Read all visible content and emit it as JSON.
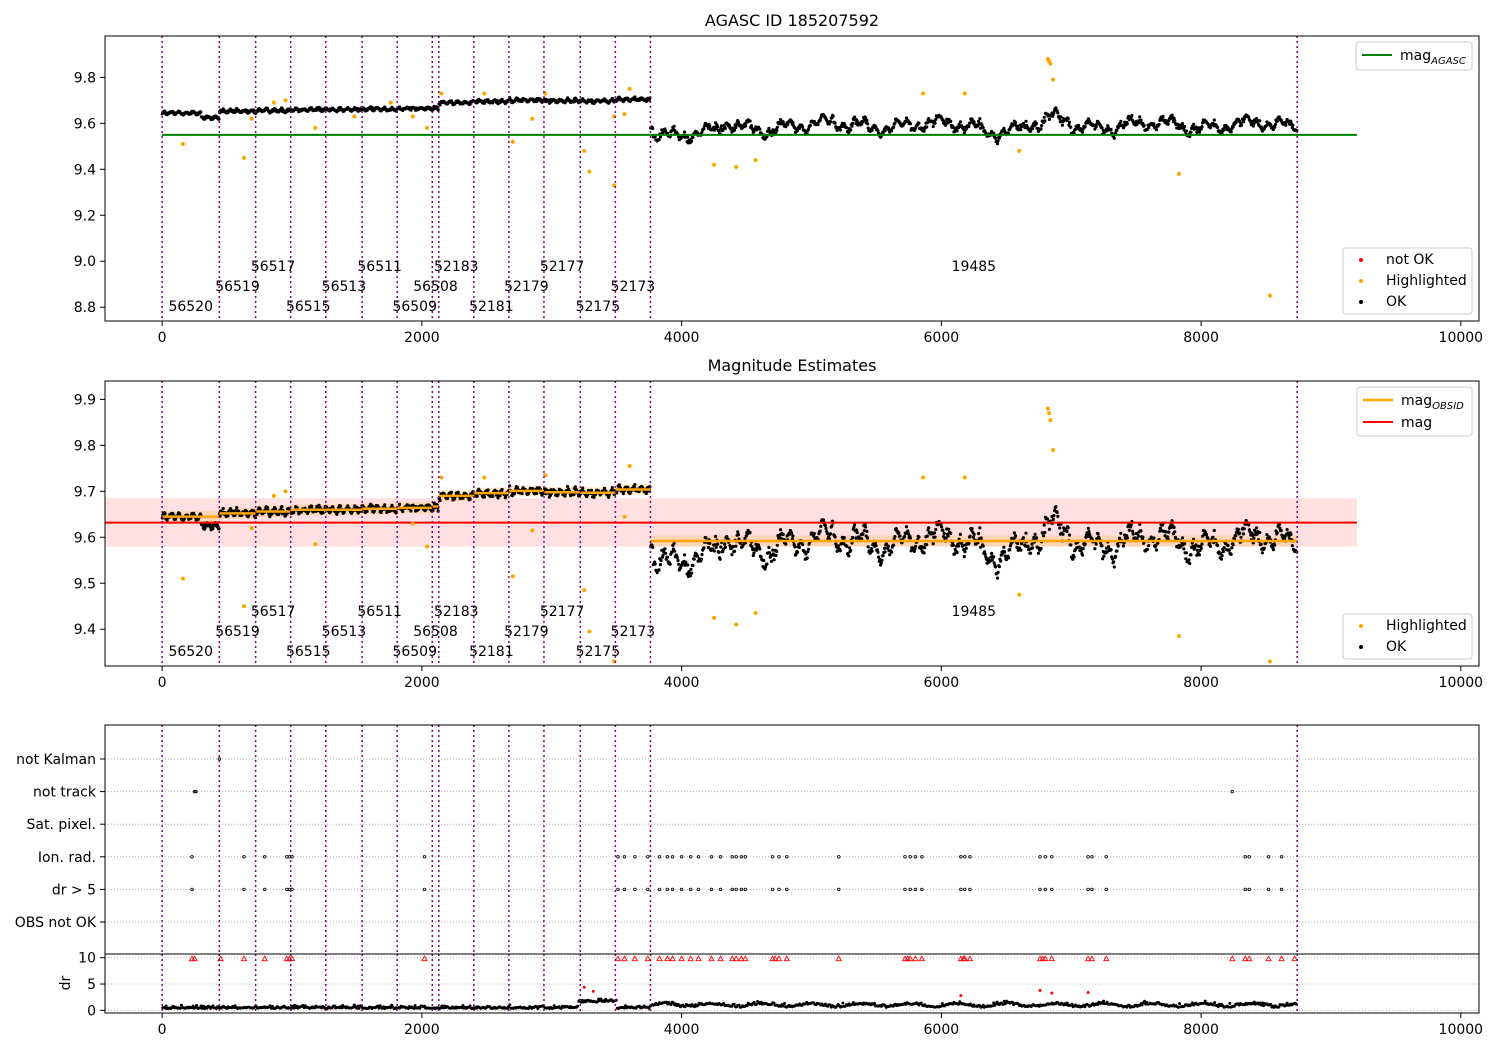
{
  "chart_data": [
    {
      "type": "scatter",
      "title": "AGASC ID 185207592",
      "xlim": [
        -440,
        10140
      ],
      "ylim": [
        8.74,
        9.98
      ],
      "xticks": [
        0,
        2000,
        4000,
        6000,
        8000,
        10000
      ],
      "yticks": [
        8.8,
        9.0,
        9.2,
        9.4,
        9.6,
        9.8
      ],
      "ytick_labels": [
        "8.8",
        "9.0",
        "9.2",
        "9.4",
        "9.6",
        "9.8"
      ],
      "mag_agasc": 9.55,
      "mag_agasc_x_range": [
        0,
        9200
      ],
      "mag_agasc_color": "#008000",
      "legend_top": {
        "label": "mag",
        "subscript": "AGASC",
        "position": "top-right"
      },
      "legend_bottom": {
        "position": "bottom-right",
        "entries": [
          {
            "label": "not OK",
            "color": "#ff0000"
          },
          {
            "label": "Highlighted",
            "color": "#ffa500"
          },
          {
            "label": "OK",
            "color": "#000000"
          }
        ]
      },
      "highlighted_points": [
        {
          "x": 160,
          "y": 9.51
        },
        {
          "x": 630,
          "y": 9.45
        },
        {
          "x": 690,
          "y": 9.62
        },
        {
          "x": 860,
          "y": 9.69
        },
        {
          "x": 950,
          "y": 9.7
        },
        {
          "x": 1180,
          "y": 9.58
        },
        {
          "x": 1480,
          "y": 9.63
        },
        {
          "x": 1760,
          "y": 9.69
        },
        {
          "x": 1930,
          "y": 9.63
        },
        {
          "x": 2040,
          "y": 9.58
        },
        {
          "x": 2150,
          "y": 9.73
        },
        {
          "x": 2480,
          "y": 9.73
        },
        {
          "x": 2700,
          "y": 9.52
        },
        {
          "x": 2850,
          "y": 9.62
        },
        {
          "x": 2950,
          "y": 9.73
        },
        {
          "x": 3250,
          "y": 9.48
        },
        {
          "x": 3290,
          "y": 9.39
        },
        {
          "x": 3480,
          "y": 9.33
        },
        {
          "x": 3480,
          "y": 9.63
        },
        {
          "x": 3560,
          "y": 9.64
        },
        {
          "x": 3600,
          "y": 9.75
        },
        {
          "x": 4250,
          "y": 9.42
        },
        {
          "x": 4420,
          "y": 9.41
        },
        {
          "x": 4570,
          "y": 9.44
        },
        {
          "x": 5860,
          "y": 9.73
        },
        {
          "x": 6180,
          "y": 9.73
        },
        {
          "x": 6600,
          "y": 9.48
        },
        {
          "x": 6820,
          "y": 9.88
        },
        {
          "x": 6830,
          "y": 9.87
        },
        {
          "x": 6840,
          "y": 9.86
        },
        {
          "x": 6860,
          "y": 9.79
        },
        {
          "x": 7830,
          "y": 9.38
        },
        {
          "x": 8530,
          "y": 8.85
        }
      ]
    },
    {
      "type": "scatter",
      "title": "Magnitude Estimates",
      "xlim": [
        -440,
        10140
      ],
      "ylim": [
        9.32,
        9.94
      ],
      "xticks": [
        0,
        2000,
        4000,
        6000,
        8000,
        10000
      ],
      "yticks": [
        9.4,
        9.5,
        9.6,
        9.7,
        9.8,
        9.9
      ],
      "ytick_labels": [
        "9.4",
        "9.5",
        "9.6",
        "9.7",
        "9.8",
        "9.9"
      ],
      "mag": 9.632,
      "mag_band": [
        9.58,
        9.685
      ],
      "mag_x_range": [
        -440,
        9200
      ],
      "mag_color": "#ff0000",
      "mag_obsid_color": "#ffa500",
      "legend_top": {
        "position": "top-right",
        "entries": [
          {
            "label": "mag",
            "subscript": "OBSID",
            "color": "#ffa500"
          },
          {
            "label": "mag",
            "subscript": "",
            "color": "#ff0000"
          }
        ]
      },
      "legend_bottom": {
        "position": "bottom-right",
        "entries": [
          {
            "label": "Highlighted",
            "color": "#ffa500"
          },
          {
            "label": "OK",
            "color": "#000000"
          }
        ]
      },
      "highlighted_points": [
        {
          "x": 160,
          "y": 9.51
        },
        {
          "x": 630,
          "y": 9.45
        },
        {
          "x": 690,
          "y": 9.62
        },
        {
          "x": 860,
          "y": 9.69
        },
        {
          "x": 950,
          "y": 9.7
        },
        {
          "x": 1180,
          "y": 9.585
        },
        {
          "x": 1930,
          "y": 9.63
        },
        {
          "x": 2040,
          "y": 9.58
        },
        {
          "x": 2150,
          "y": 9.73
        },
        {
          "x": 2480,
          "y": 9.73
        },
        {
          "x": 2700,
          "y": 9.515
        },
        {
          "x": 2850,
          "y": 9.615
        },
        {
          "x": 2950,
          "y": 9.735
        },
        {
          "x": 3250,
          "y": 9.485
        },
        {
          "x": 3290,
          "y": 9.395
        },
        {
          "x": 3480,
          "y": 9.33
        },
        {
          "x": 3560,
          "y": 9.645
        },
        {
          "x": 3600,
          "y": 9.755
        },
        {
          "x": 4250,
          "y": 9.425
        },
        {
          "x": 4420,
          "y": 9.41
        },
        {
          "x": 4570,
          "y": 9.435
        },
        {
          "x": 5860,
          "y": 9.73
        },
        {
          "x": 6180,
          "y": 9.73
        },
        {
          "x": 6600,
          "y": 9.475
        },
        {
          "x": 6820,
          "y": 9.88
        },
        {
          "x": 6830,
          "y": 9.87
        },
        {
          "x": 6840,
          "y": 9.855
        },
        {
          "x": 6860,
          "y": 9.79
        },
        {
          "x": 7830,
          "y": 9.385
        },
        {
          "x": 8530,
          "y": 9.33
        }
      ]
    },
    {
      "type": "scatter",
      "title": "",
      "xlim": [
        -440,
        10140
      ],
      "xticks": [
        0,
        2000,
        4000,
        6000,
        8000,
        10000
      ],
      "flag_categories": [
        "not Kalman",
        "not track",
        "Sat. pixel.",
        "Ion. rad.",
        "dr > 5",
        "OBS not OK"
      ],
      "flag_points": {
        "not Kalman": [
          440
        ],
        "not track": [
          250,
          260,
          8240
        ],
        "Sat. pixel.": [],
        "Ion. rad.": [
          230,
          630,
          790,
          960,
          980,
          1000,
          2020,
          3510,
          3560,
          3640,
          3740,
          3830,
          3890,
          3930,
          4000,
          4070,
          4130,
          4230,
          4300,
          4390,
          4420,
          4460,
          4490,
          4700,
          4750,
          4810,
          5210,
          5720,
          5760,
          5800,
          5850,
          6150,
          6180,
          6220,
          6760,
          6800,
          6850,
          7130,
          7160,
          7270,
          8340,
          8370,
          8520,
          8620
        ],
        "dr > 5": [
          230,
          630,
          790,
          960,
          980,
          1000,
          2020,
          3510,
          3560,
          3640,
          3740,
          3830,
          3890,
          3930,
          4000,
          4070,
          4130,
          4230,
          4300,
          4390,
          4420,
          4460,
          4490,
          4700,
          4750,
          4810,
          5210,
          5720,
          5760,
          5800,
          5850,
          6150,
          6180,
          6220,
          6760,
          6800,
          6850,
          7130,
          7160,
          7270,
          8340,
          8370,
          8520,
          8620
        ],
        "OBS not OK": []
      },
      "dr_ylabel": "dr",
      "dr_yticks": [
        0,
        5,
        10
      ],
      "dr_ylim": [
        -0.5,
        10.7
      ],
      "dr_clipped_x": [
        230,
        250,
        450,
        630,
        790,
        960,
        980,
        1000,
        2020,
        3510,
        3560,
        3640,
        3740,
        3830,
        3890,
        3930,
        4000,
        4070,
        4130,
        4230,
        4300,
        4390,
        4420,
        4460,
        4490,
        4700,
        4720,
        4750,
        4810,
        5210,
        5720,
        5740,
        5760,
        5800,
        5850,
        6150,
        6170,
        6180,
        6220,
        6760,
        6780,
        6800,
        6850,
        7130,
        7160,
        7270,
        8240,
        8340,
        8370,
        8520,
        8620,
        8720
      ]
    }
  ],
  "obsid_labels": {
    "top_row": [
      "56517",
      "56511",
      "52183",
      "52177",
      "19485"
    ],
    "middle_row": [
      "56519",
      "56513",
      "56508",
      "52179",
      "52173"
    ],
    "bottom_row": [
      "56520",
      "56515",
      "56509",
      "52181",
      "52175"
    ]
  },
  "obsids": [
    {
      "id": "56520",
      "start": 0,
      "end": 440,
      "mag": 9.645
    },
    {
      "id": "56519",
      "start": 440,
      "end": 720,
      "mag": 9.652
    },
    {
      "id": "56517",
      "start": 720,
      "end": 990,
      "mag": 9.656
    },
    {
      "id": "56515",
      "start": 990,
      "end": 1260,
      "mag": 9.66
    },
    {
      "id": "56513",
      "start": 1260,
      "end": 1540,
      "mag": 9.66
    },
    {
      "id": "56511",
      "start": 1540,
      "end": 1810,
      "mag": 9.662
    },
    {
      "id": "56509",
      "start": 1810,
      "end": 2080,
      "mag": 9.664
    },
    {
      "id": "56508",
      "start": 2080,
      "end": 2130,
      "mag": 9.667
    },
    {
      "id": "52183",
      "start": 2130,
      "end": 2400,
      "mag": 9.69
    },
    {
      "id": "52181",
      "start": 2400,
      "end": 2670,
      "mag": 9.696
    },
    {
      "id": "52179",
      "start": 2670,
      "end": 2940,
      "mag": 9.701
    },
    {
      "id": "52177",
      "start": 2940,
      "end": 3220,
      "mag": 9.698
    },
    {
      "id": "52175",
      "start": 3220,
      "end": 3490,
      "mag": 9.697
    },
    {
      "id": "52173",
      "start": 3490,
      "end": 3760,
      "mag": 9.704
    },
    {
      "id": "19485",
      "start": 3760,
      "end": 8740,
      "mag": 9.592
    }
  ],
  "boundary_color": "#800080"
}
